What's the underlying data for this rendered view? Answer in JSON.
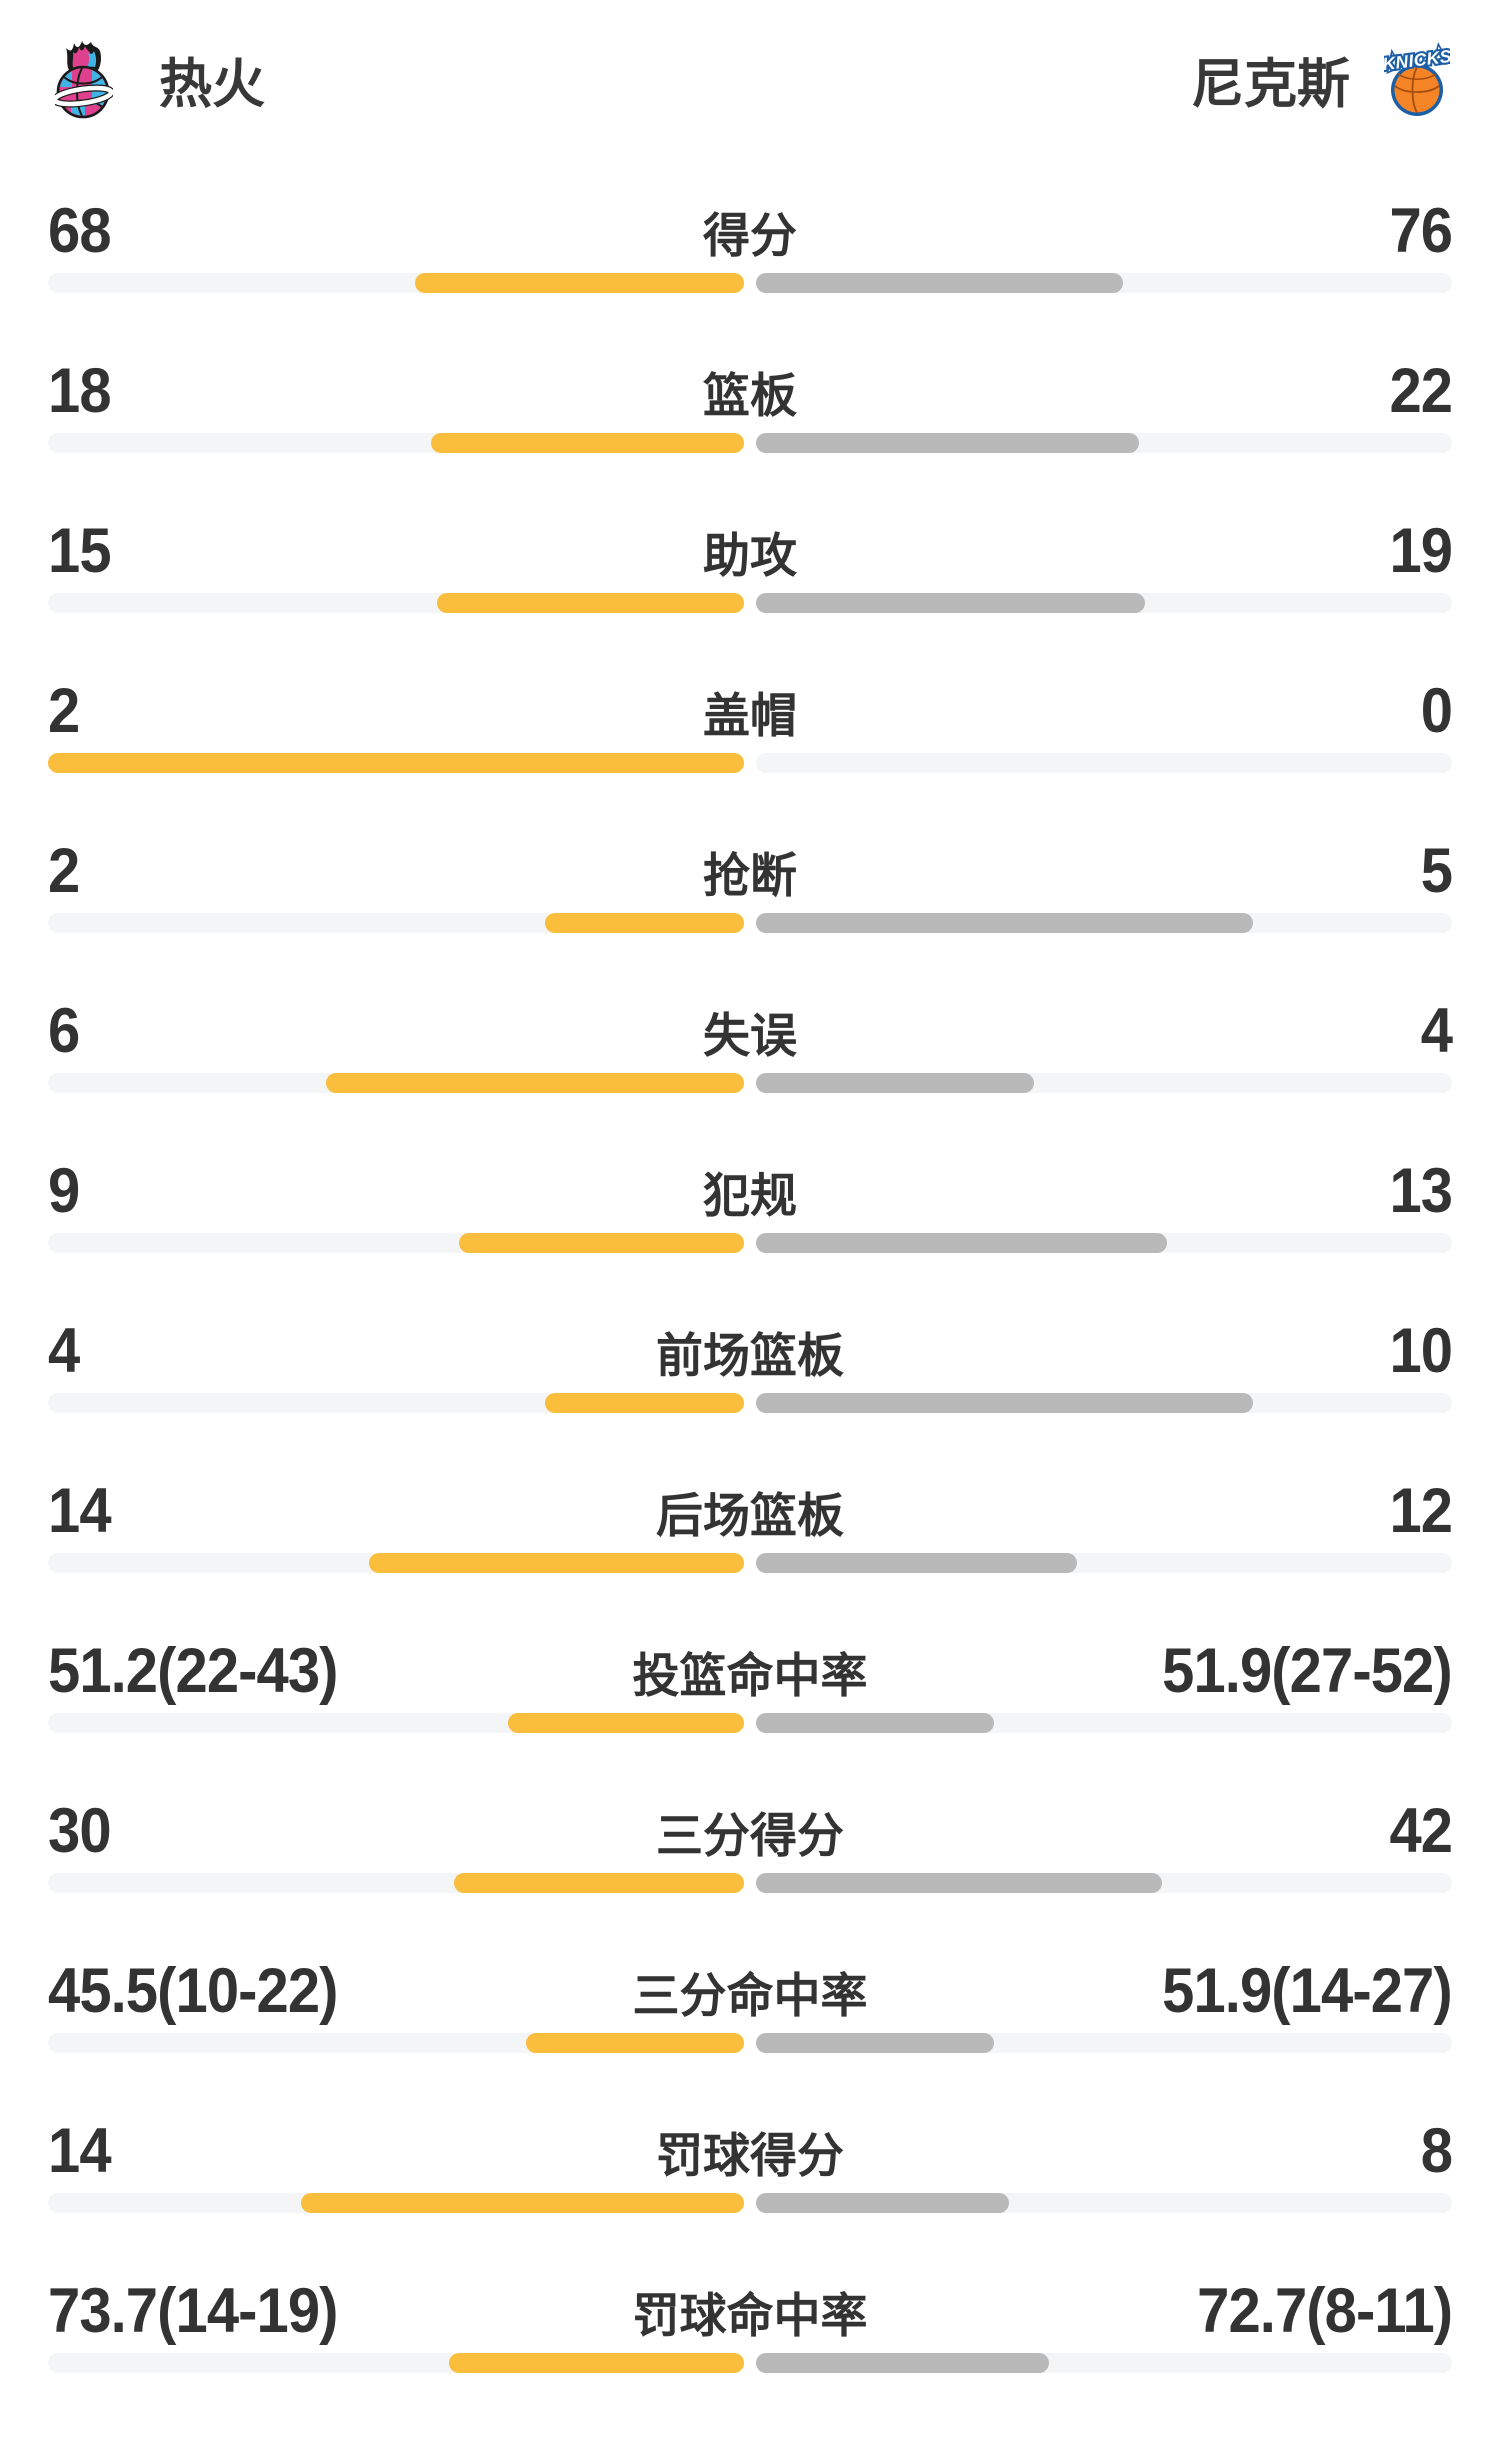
{
  "header": {
    "home_team": {
      "name": "热火"
    },
    "away_team": {
      "name": "尼克斯",
      "logo_wordmark": "KNICKS"
    }
  },
  "colors": {
    "home_bar": "#FBBE3C",
    "away_bar": "#B9B9B9",
    "bar_track": "#F4F5F7",
    "text": "#333333",
    "heat_pink": "#E0418F",
    "heat_blue": "#41B4E6",
    "knicks_orange": "#F58426",
    "knicks_blue": "#1D5FA6"
  },
  "chart_data": {
    "type": "bar",
    "subtype": "paired-horizontal-team-comparison",
    "legend_position": "top",
    "series_names": [
      "热火",
      "尼克斯"
    ],
    "bar_length_rule": {
      "count": "side_value / (home_value + away_value) of half track",
      "percent": "pct / (pct + 100) of half track"
    },
    "rows": [
      {
        "label": "得分",
        "type": "count",
        "home": {
          "display": "68",
          "value": 68
        },
        "away": {
          "display": "76",
          "value": 76
        }
      },
      {
        "label": "篮板",
        "type": "count",
        "home": {
          "display": "18",
          "value": 18
        },
        "away": {
          "display": "22",
          "value": 22
        }
      },
      {
        "label": "助攻",
        "type": "count",
        "home": {
          "display": "15",
          "value": 15
        },
        "away": {
          "display": "19",
          "value": 19
        }
      },
      {
        "label": "盖帽",
        "type": "count",
        "home": {
          "display": "2",
          "value": 2
        },
        "away": {
          "display": "0",
          "value": 0
        }
      },
      {
        "label": "抢断",
        "type": "count",
        "home": {
          "display": "2",
          "value": 2
        },
        "away": {
          "display": "5",
          "value": 5
        }
      },
      {
        "label": "失误",
        "type": "count",
        "home": {
          "display": "6",
          "value": 6
        },
        "away": {
          "display": "4",
          "value": 4
        }
      },
      {
        "label": "犯规",
        "type": "count",
        "home": {
          "display": "9",
          "value": 9
        },
        "away": {
          "display": "13",
          "value": 13
        }
      },
      {
        "label": "前场篮板",
        "type": "count",
        "home": {
          "display": "4",
          "value": 4
        },
        "away": {
          "display": "10",
          "value": 10
        }
      },
      {
        "label": "后场篮板",
        "type": "count",
        "home": {
          "display": "14",
          "value": 14
        },
        "away": {
          "display": "12",
          "value": 12
        }
      },
      {
        "label": "投篮命中率",
        "type": "percent",
        "home": {
          "display": "51.2(22-43)",
          "value": 51.2,
          "made": 22,
          "attempts": 43
        },
        "away": {
          "display": "51.9(27-52)",
          "value": 51.9,
          "made": 27,
          "attempts": 52
        }
      },
      {
        "label": "三分得分",
        "type": "count",
        "home": {
          "display": "30",
          "value": 30
        },
        "away": {
          "display": "42",
          "value": 42
        }
      },
      {
        "label": "三分命中率",
        "type": "percent",
        "home": {
          "display": "45.5(10-22)",
          "value": 45.5,
          "made": 10,
          "attempts": 22
        },
        "away": {
          "display": "51.9(14-27)",
          "value": 51.9,
          "made": 14,
          "attempts": 27
        }
      },
      {
        "label": "罚球得分",
        "type": "count",
        "home": {
          "display": "14",
          "value": 14
        },
        "away": {
          "display": "8",
          "value": 8
        }
      },
      {
        "label": "罚球命中率",
        "type": "percent",
        "home": {
          "display": "73.7(14-19)",
          "value": 73.7,
          "made": 14,
          "attempts": 19
        },
        "away": {
          "display": "72.7(8-11)",
          "value": 72.7,
          "made": 8,
          "attempts": 11
        }
      }
    ]
  }
}
